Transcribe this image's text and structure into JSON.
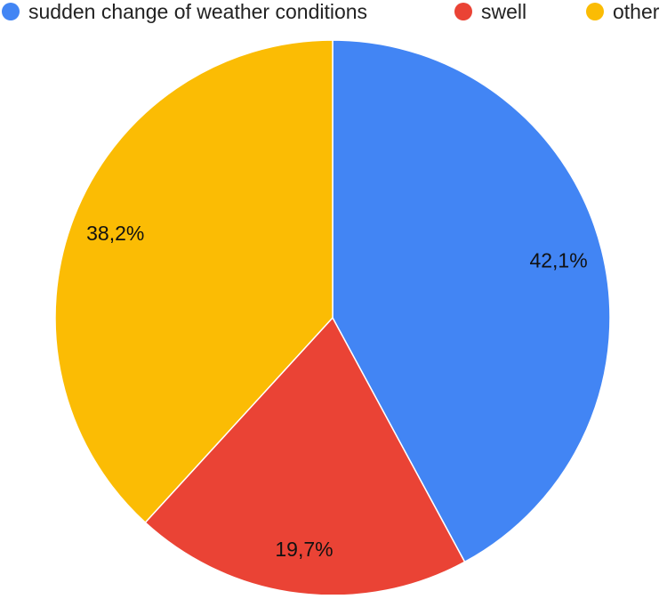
{
  "chart_data": {
    "type": "pie",
    "title": "",
    "legend_position": "top",
    "slices": [
      {
        "label": "sudden change of weather conditions",
        "value": 42.1,
        "value_label": "42,1%",
        "color": "#4285f4"
      },
      {
        "label": "swell",
        "value": 19.7,
        "value_label": "19,7%",
        "color": "#ea4335"
      },
      {
        "label": "other",
        "value": 38.2,
        "value_label": "38,2%",
        "color": "#fbbc04"
      }
    ]
  }
}
